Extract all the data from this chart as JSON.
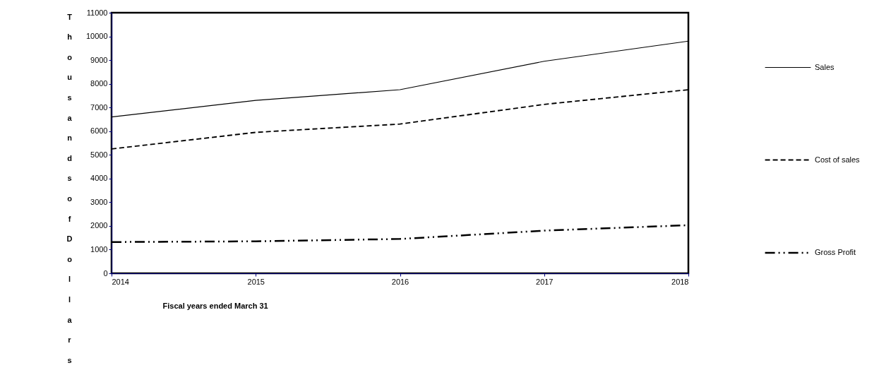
{
  "chart_data": {
    "type": "line",
    "xlabel": "Fiscal years ended March 31",
    "ylabel": "Thousands of Dollars",
    "x": [
      2014,
      2015,
      2016,
      2017,
      2018
    ],
    "series": [
      {
        "name": "Sales",
        "color": "#000000",
        "line_style": "solid",
        "values": [
          6600,
          7300,
          7750,
          8950,
          9800
        ]
      },
      {
        "name": "Cost of sales",
        "color": "#000000",
        "line_style": "dashed",
        "values": [
          5250,
          5950,
          6300,
          7130,
          7750
        ]
      },
      {
        "name": "Gross Profit",
        "color": "#000000",
        "line_style": "dashdot",
        "values": [
          1320,
          1350,
          1450,
          1800,
          2030
        ]
      }
    ],
    "xlim": [
      2014,
      2018
    ],
    "xticks": [
      2014,
      2015,
      2016,
      2017,
      2018
    ],
    "ylim": [
      0,
      11000
    ],
    "yticks": [
      0,
      1000,
      2000,
      3000,
      4000,
      5000,
      6000,
      7000,
      8000,
      9000,
      10000,
      11000
    ],
    "grid": false,
    "legend": "right",
    "marker": "none"
  }
}
